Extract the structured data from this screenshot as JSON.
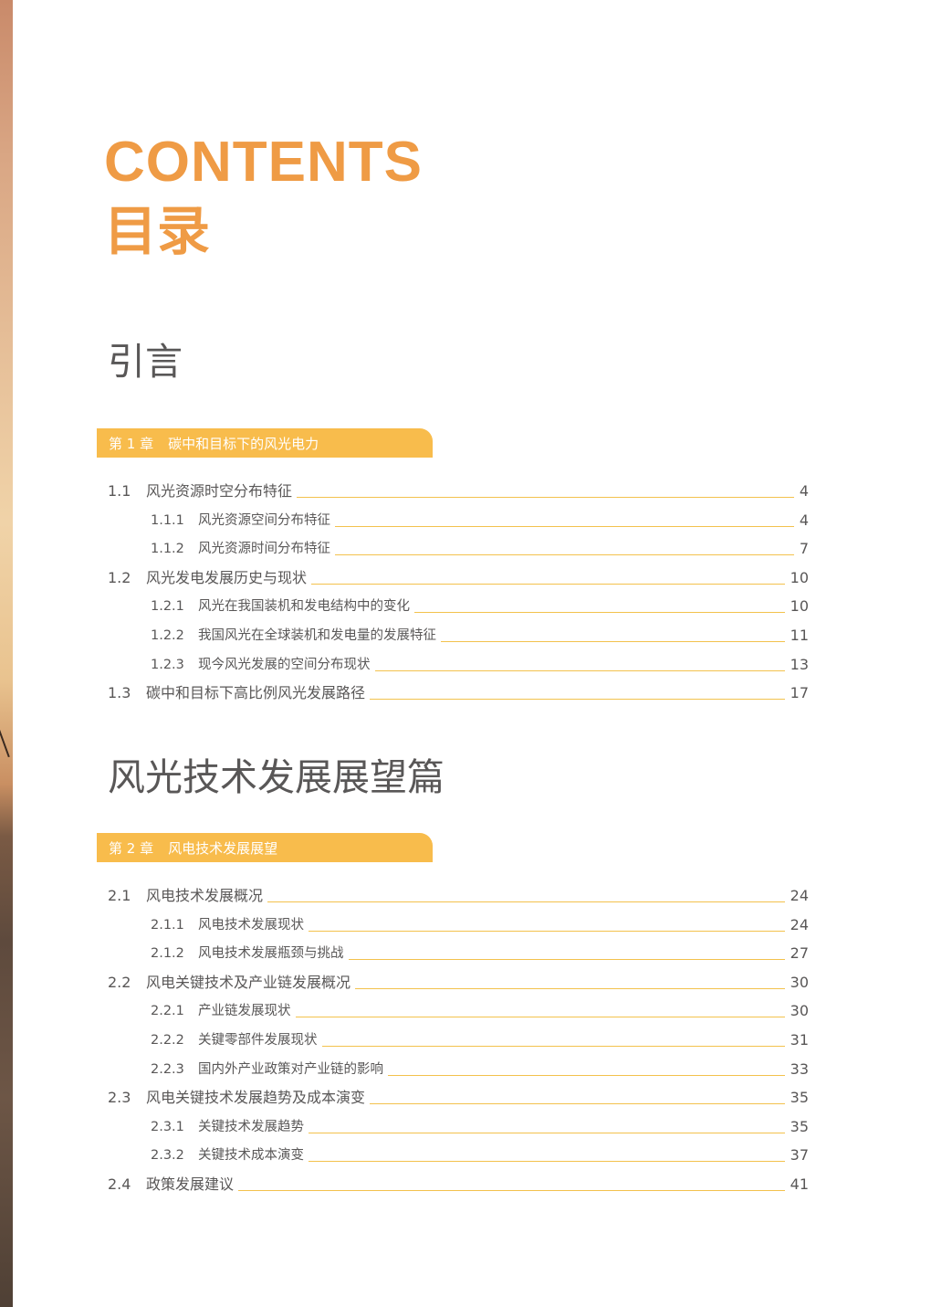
{
  "header": {
    "title_en": "CONTENTS",
    "title_cn": "目录"
  },
  "colors": {
    "accent": "#ef9b45",
    "chapter_bar": "#f8bc4c",
    "leader": "#f3c24d",
    "text": "#595757"
  },
  "sections": [
    {
      "part_title": "引言",
      "chapter_num": "第 1 章",
      "chapter_title": "碳中和目标下的风光电力",
      "entries": [
        {
          "num": "1.1",
          "label": "风光资源时空分布特征",
          "page": "4",
          "level": 1
        },
        {
          "num": "1.1.1",
          "label": "风光资源空间分布特征",
          "page": "4",
          "level": 2
        },
        {
          "num": "1.1.2",
          "label": "风光资源时间分布特征",
          "page": "7",
          "level": 2
        },
        {
          "num": "1.2",
          "label": "风光发电发展历史与现状",
          "page": "10",
          "level": 1
        },
        {
          "num": "1.2.1",
          "label": "风光在我国装机和发电结构中的变化",
          "page": "10",
          "level": 2
        },
        {
          "num": "1.2.2",
          "label": "我国风光在全球装机和发电量的发展特征",
          "page": "11",
          "level": 2
        },
        {
          "num": "1.2.3",
          "label": "现今风光发展的空间分布现状",
          "page": "13",
          "level": 2
        },
        {
          "num": "1.3",
          "label": "碳中和目标下高比例风光发展路径",
          "page": "17",
          "level": 1
        }
      ]
    },
    {
      "part_title": "风光技术发展展望篇",
      "chapter_num": "第 2 章",
      "chapter_title": "风电技术发展展望",
      "entries": [
        {
          "num": "2.1",
          "label": "风电技术发展概况",
          "page": "24",
          "level": 1
        },
        {
          "num": "2.1.1",
          "label": "风电技术发展现状",
          "page": "24",
          "level": 2
        },
        {
          "num": "2.1.2",
          "label": "风电技术发展瓶颈与挑战",
          "page": "27",
          "level": 2
        },
        {
          "num": "2.2",
          "label": "风电关键技术及产业链发展概况",
          "page": "30",
          "level": 1
        },
        {
          "num": "2.2.1",
          "label": "产业链发展现状",
          "page": "30",
          "level": 2
        },
        {
          "num": "2.2.2",
          "label": "关键零部件发展现状",
          "page": "31",
          "level": 2
        },
        {
          "num": "2.2.3",
          "label": "国内外产业政策对产业链的影响",
          "page": "33",
          "level": 2
        },
        {
          "num": "2.3",
          "label": "风电关键技术发展趋势及成本演变",
          "page": "35",
          "level": 1
        },
        {
          "num": "2.3.1",
          "label": "关键技术发展趋势",
          "page": "35",
          "level": 2
        },
        {
          "num": "2.3.2",
          "label": "关键技术成本演变",
          "page": "37",
          "level": 2
        },
        {
          "num": "2.4",
          "label": "政策发展建议",
          "page": "41",
          "level": 1
        }
      ]
    }
  ]
}
